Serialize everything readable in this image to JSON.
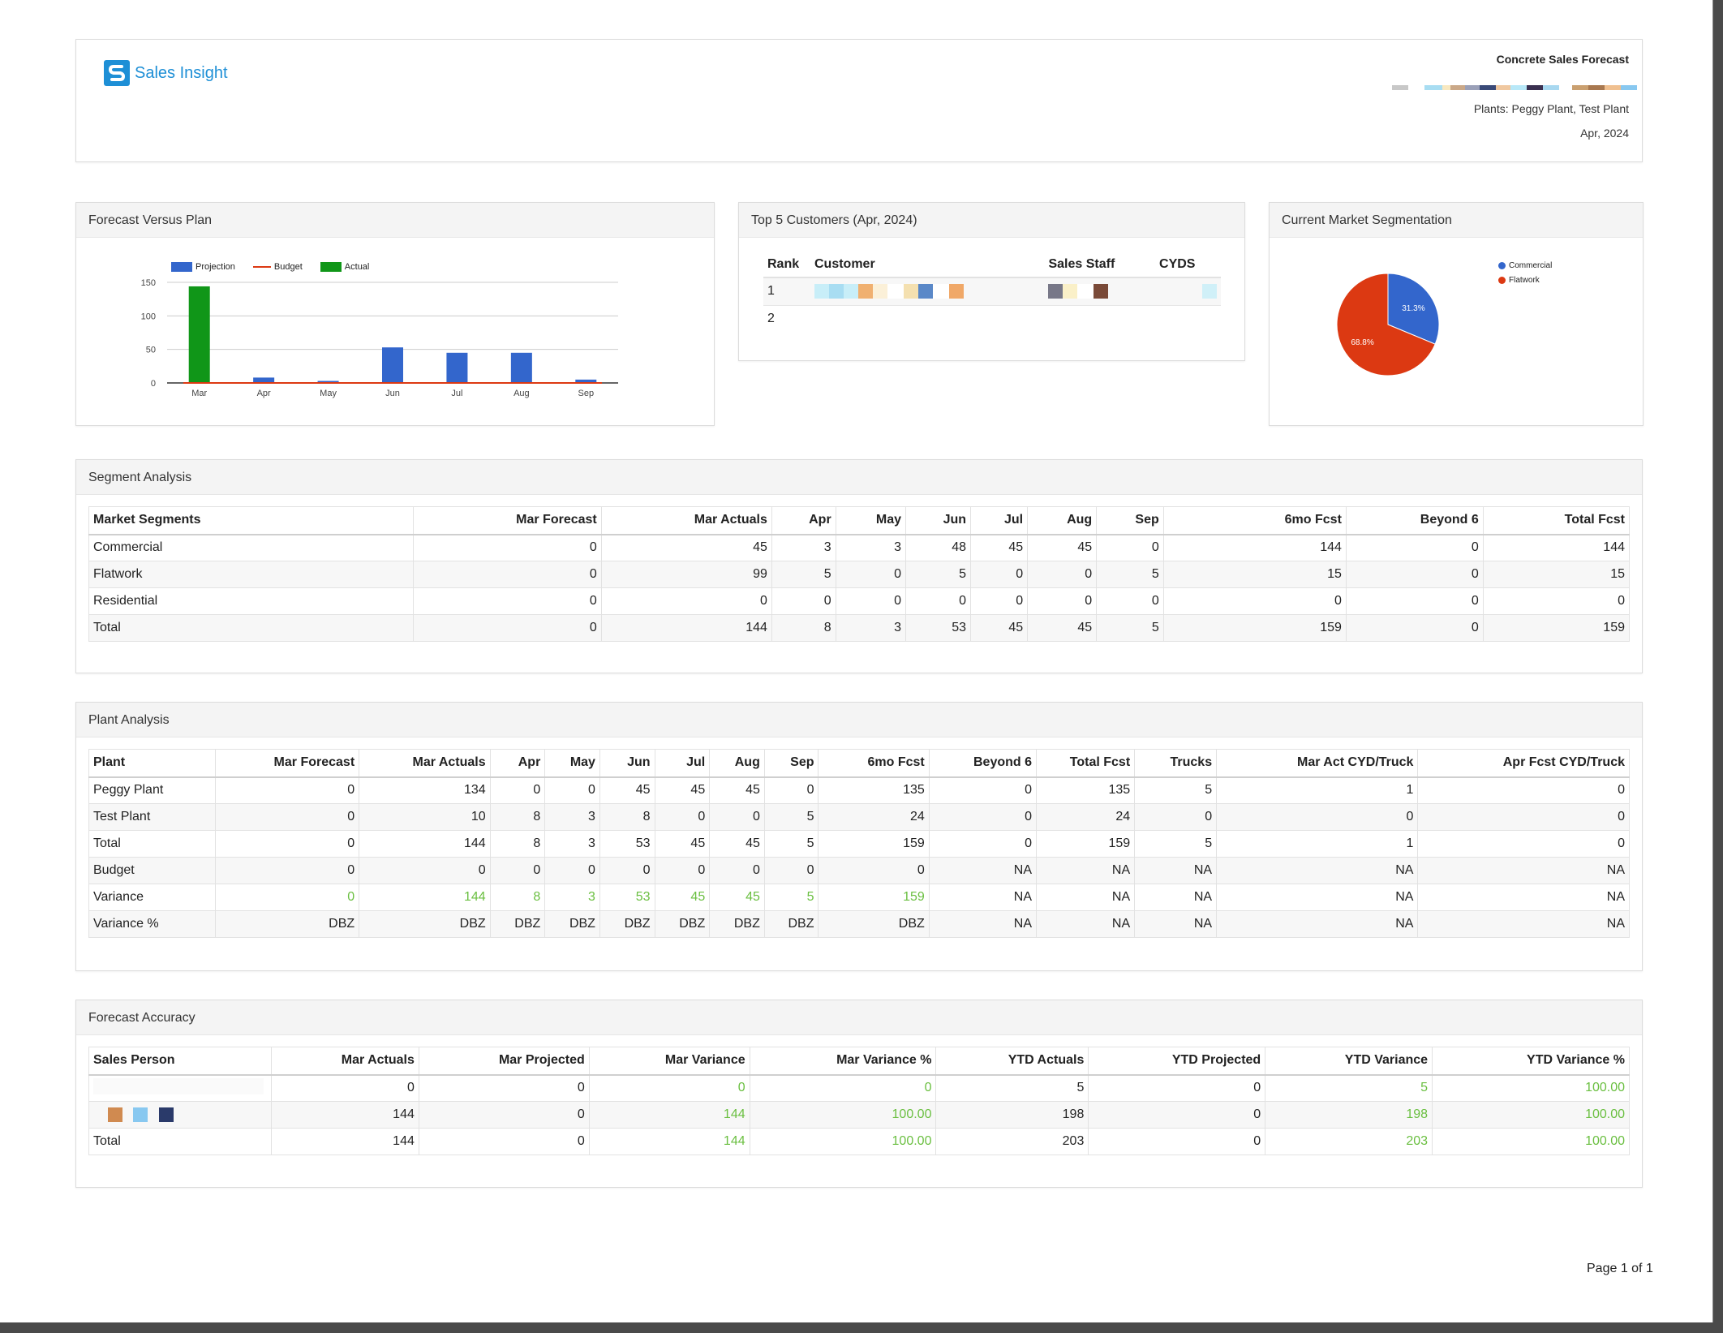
{
  "header": {
    "brand": "Sales Insight",
    "title": "Concrete Sales Forecast",
    "plants": "Plants: Peggy Plant, Test Plant",
    "date": "Apr, 2024",
    "colors": {
      "brand": "#1e8fd6"
    }
  },
  "forecast_vs_plan": {
    "title": "Forecast Versus Plan",
    "legend": {
      "projection": "Projection",
      "budget": "Budget",
      "actual": "Actual"
    }
  },
  "chart_data": [
    {
      "type": "bar",
      "categories": [
        "Mar",
        "Apr",
        "May",
        "Jun",
        "Jul",
        "Aug",
        "Sep"
      ],
      "series": [
        {
          "name": "Projection",
          "values": [
            0,
            8,
            3,
            53,
            45,
            45,
            5
          ],
          "color": "#3366cc"
        },
        {
          "name": "Budget",
          "values": [
            0,
            0,
            0,
            0,
            0,
            0,
            0
          ],
          "color": "#dc3912",
          "render": "line"
        },
        {
          "name": "Actual",
          "values": [
            144,
            0,
            0,
            0,
            0,
            0,
            0
          ],
          "color": "#109618"
        }
      ],
      "yticks": [
        0,
        50,
        100,
        150
      ],
      "ylim": [
        0,
        150
      ],
      "grid": true,
      "legend": "top"
    },
    {
      "type": "pie",
      "labels": [
        "Commercial",
        "Flatwork"
      ],
      "values": [
        31.3,
        68.8
      ],
      "value_labels": [
        "31.3%",
        "68.8%"
      ],
      "colors": [
        "#3366cc",
        "#dc3912"
      ],
      "legend": "right"
    }
  ],
  "top5": {
    "title": "Top 5 Customers (Apr, 2024)",
    "columns": [
      "Rank",
      "Customer",
      "Sales Staff",
      "CYDS"
    ],
    "ranks": [
      "1",
      "2"
    ]
  },
  "segmentation": {
    "title": "Current Market Segmentation",
    "legend": [
      "Commercial",
      "Flatwork"
    ]
  },
  "segment_analysis": {
    "title": "Segment Analysis",
    "columns": [
      "Market Segments",
      "Mar Forecast",
      "Mar Actuals",
      "Apr",
      "May",
      "Jun",
      "Jul",
      "Aug",
      "Sep",
      "6mo Fcst",
      "Beyond 6",
      "Total Fcst"
    ],
    "rows": [
      [
        "Commercial",
        "0",
        "45",
        "3",
        "3",
        "48",
        "45",
        "45",
        "0",
        "144",
        "0",
        "144"
      ],
      [
        "Flatwork",
        "0",
        "99",
        "5",
        "0",
        "5",
        "0",
        "0",
        "5",
        "15",
        "0",
        "15"
      ],
      [
        "Residential",
        "0",
        "0",
        "0",
        "0",
        "0",
        "0",
        "0",
        "0",
        "0",
        "0",
        "0"
      ],
      [
        "Total",
        "0",
        "144",
        "8",
        "3",
        "53",
        "45",
        "45",
        "5",
        "159",
        "0",
        "159"
      ]
    ]
  },
  "plant_analysis": {
    "title": "Plant Analysis",
    "columns": [
      "Plant",
      "Mar Forecast",
      "Mar Actuals",
      "Apr",
      "May",
      "Jun",
      "Jul",
      "Aug",
      "Sep",
      "6mo Fcst",
      "Beyond 6",
      "Total Fcst",
      "Trucks",
      "Mar Act CYD/Truck",
      "Apr Fcst CYD/Truck"
    ],
    "rows": [
      [
        "Peggy Plant",
        "0",
        "134",
        "0",
        "0",
        "45",
        "45",
        "45",
        "0",
        "135",
        "0",
        "135",
        "5",
        "1",
        "0"
      ],
      [
        "Test Plant",
        "0",
        "10",
        "8",
        "3",
        "8",
        "0",
        "0",
        "5",
        "24",
        "0",
        "24",
        "0",
        "0",
        "0"
      ],
      [
        "Total",
        "0",
        "144",
        "8",
        "3",
        "53",
        "45",
        "45",
        "5",
        "159",
        "0",
        "159",
        "5",
        "1",
        "0"
      ],
      [
        "Budget",
        "0",
        "0",
        "0",
        "0",
        "0",
        "0",
        "0",
        "0",
        "0",
        "NA",
        "NA",
        "NA",
        "NA",
        "NA"
      ],
      [
        "Variance",
        "0",
        "144",
        "8",
        "3",
        "53",
        "45",
        "45",
        "5",
        "159",
        "NA",
        "NA",
        "NA",
        "NA",
        "NA"
      ],
      [
        "Variance %",
        "DBZ",
        "DBZ",
        "DBZ",
        "DBZ",
        "DBZ",
        "DBZ",
        "DBZ",
        "DBZ",
        "DBZ",
        "NA",
        "NA",
        "NA",
        "NA",
        "NA"
      ]
    ]
  },
  "forecast_accuracy": {
    "title": "Forecast Accuracy",
    "columns": [
      "Sales Person",
      "Mar Actuals",
      "Mar Projected",
      "Mar Variance",
      "Mar Variance %",
      "YTD Actuals",
      "YTD Projected",
      "YTD Variance",
      "YTD Variance %"
    ],
    "rows": [
      [
        "",
        "0",
        "0",
        "0",
        "0",
        "5",
        "0",
        "5",
        "100.00"
      ],
      [
        "",
        "144",
        "0",
        "144",
        "100.00",
        "198",
        "0",
        "198",
        "100.00"
      ],
      [
        "Total",
        "144",
        "0",
        "144",
        "100.00",
        "203",
        "0",
        "203",
        "100.00"
      ]
    ]
  },
  "footer": {
    "page": "Page 1 of 1"
  }
}
